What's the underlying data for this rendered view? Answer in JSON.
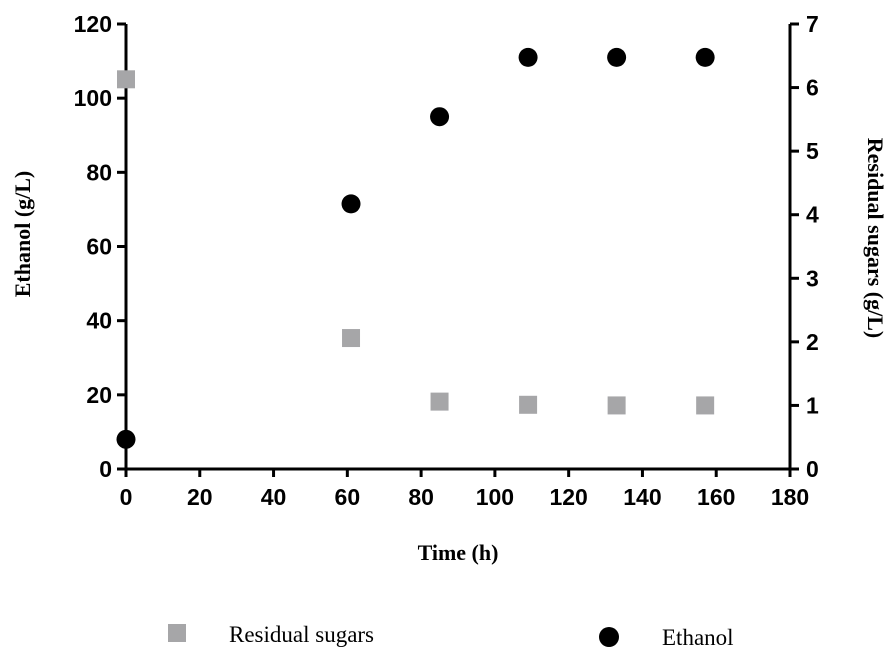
{
  "chart_data": {
    "type": "scatter",
    "xlabel": "Time (h)",
    "ylabel_left": "Ethanol (g/L)",
    "ylabel_right": "Residual sugars (g/L)",
    "xlim": [
      0,
      180
    ],
    "ylim_left": [
      0,
      120
    ],
    "ylim_right": [
      0,
      7
    ],
    "xticks": [
      "0",
      "20",
      "40",
      "60",
      "80",
      "100",
      "120",
      "140",
      "160",
      "180"
    ],
    "yticks_left": [
      "0",
      "20",
      "40",
      "60",
      "80",
      "100",
      "120"
    ],
    "yticks_right": [
      "0",
      "1",
      "2",
      "3",
      "4",
      "5",
      "6",
      "7"
    ],
    "grid": false,
    "legend_position": "bottom",
    "series": [
      {
        "name": "Residual sugars",
        "axis": "right",
        "marker": "square",
        "color": "#a6a6a8",
        "points": [
          [
            0,
            6.13
          ],
          [
            61,
            2.06
          ],
          [
            85,
            1.06
          ],
          [
            109,
            1.01
          ],
          [
            133,
            1.0
          ],
          [
            157,
            1.0
          ]
        ]
      },
      {
        "name": "Ethanol",
        "axis": "left",
        "marker": "circle",
        "color": "#000000",
        "points": [
          [
            0,
            8
          ],
          [
            61,
            71.5
          ],
          [
            85,
            95
          ],
          [
            109,
            111
          ],
          [
            133,
            111
          ],
          [
            157,
            111
          ]
        ]
      }
    ]
  }
}
